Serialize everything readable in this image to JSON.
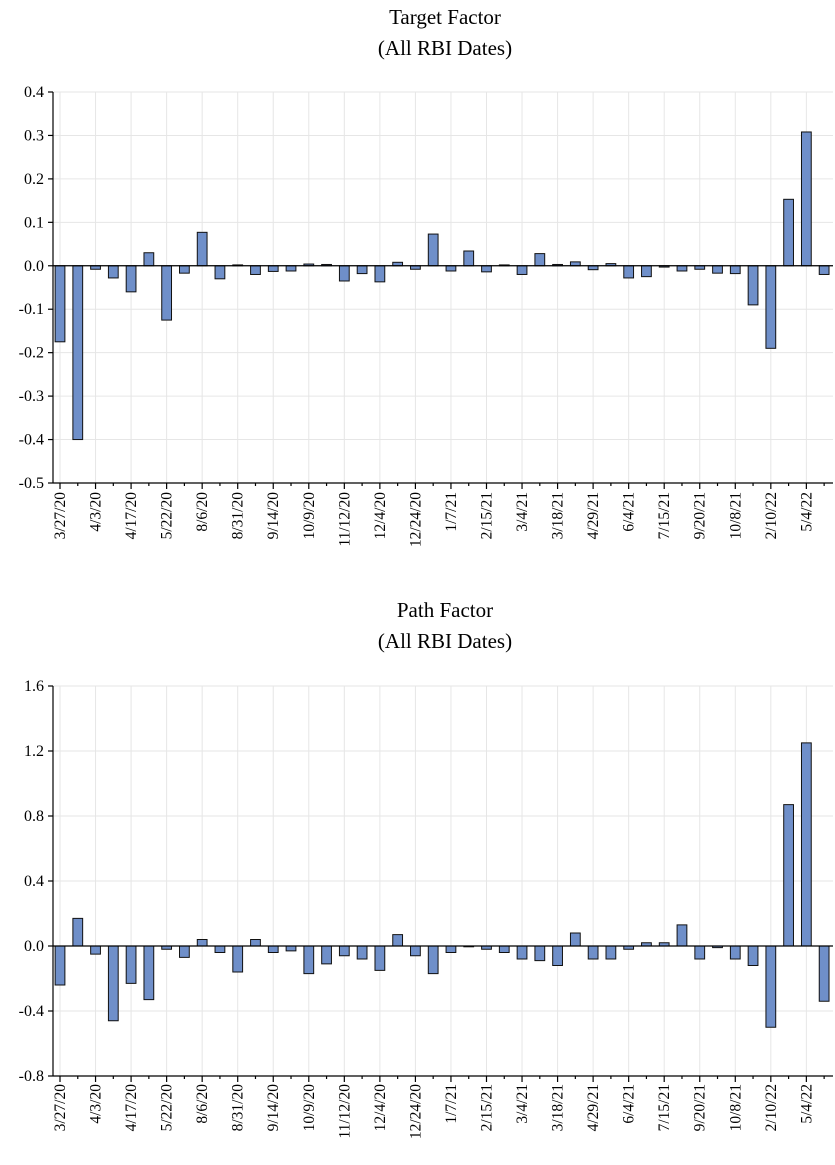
{
  "chart_data": [
    {
      "type": "bar",
      "title": "Target Factor",
      "subtitle": "(All RBI Dates)",
      "xlabel": "",
      "ylabel": "",
      "ylim": [
        -0.5,
        0.4
      ],
      "yticks": [
        "0.4",
        "0.3",
        "0.2",
        "0.1",
        "0.0",
        "-0.1",
        "-0.2",
        "-0.3",
        "-0.4",
        "-0.5"
      ],
      "ytick_values": [
        0.4,
        0.3,
        0.2,
        0.1,
        0.0,
        -0.1,
        -0.2,
        -0.3,
        -0.4,
        -0.5
      ],
      "xtick_labels": [
        "3/27/20",
        "4/3/20",
        "4/17/20",
        "5/22/20",
        "8/6/20",
        "8/31/20",
        "9/14/20",
        "10/9/20",
        "11/12/20",
        "12/4/20",
        "12/24/20",
        "1/7/21",
        "2/15/21",
        "3/4/21",
        "3/18/21",
        "4/29/21",
        "6/4/21",
        "7/15/21",
        "9/20/21",
        "10/8/21",
        "2/10/22",
        "5/4/22"
      ],
      "grid": true,
      "bar_color": "#6f8fc9",
      "values": [
        -0.175,
        -0.4,
        -0.008,
        -0.028,
        -0.06,
        0.03,
        -0.125,
        -0.017,
        0.077,
        -0.03,
        0.002,
        -0.02,
        -0.013,
        -0.012,
        0.004,
        0.003,
        -0.035,
        -0.018,
        -0.037,
        0.008,
        -0.008,
        0.073,
        -0.012,
        0.034,
        -0.014,
        0.002,
        -0.02,
        0.028,
        0.003,
        0.009,
        -0.009,
        0.005,
        -0.028,
        -0.025,
        -0.003,
        -0.012,
        -0.008,
        -0.017,
        -0.018,
        -0.09,
        -0.19,
        0.153,
        0.308,
        -0.02
      ]
    },
    {
      "type": "bar",
      "title": "Path Factor",
      "subtitle": "(All RBI Dates)",
      "xlabel": "",
      "ylabel": "",
      "ylim": [
        -0.8,
        1.6
      ],
      "yticks": [
        "1.6",
        "1.2",
        "0.8",
        "0.4",
        "0.0",
        "-0.4",
        "-0.8"
      ],
      "ytick_values": [
        1.6,
        1.2,
        0.8,
        0.4,
        0.0,
        -0.4,
        -0.8
      ],
      "xtick_labels": [
        "3/27/20",
        "4/3/20",
        "4/17/20",
        "5/22/20",
        "8/6/20",
        "8/31/20",
        "9/14/20",
        "10/9/20",
        "11/12/20",
        "12/4/20",
        "12/24/20",
        "1/7/21",
        "2/15/21",
        "3/4/21",
        "3/18/21",
        "4/29/21",
        "6/4/21",
        "7/15/21",
        "9/20/21",
        "10/8/21",
        "2/10/22",
        "5/4/22"
      ],
      "grid": true,
      "bar_color": "#6f8fc9",
      "values": [
        -0.24,
        0.17,
        -0.05,
        -0.46,
        -0.23,
        -0.33,
        -0.02,
        -0.07,
        0.04,
        -0.04,
        -0.16,
        0.04,
        -0.04,
        -0.03,
        -0.17,
        -0.11,
        -0.06,
        -0.08,
        -0.15,
        0.07,
        -0.06,
        -0.17,
        -0.04,
        0.0,
        -0.02,
        -0.04,
        -0.08,
        -0.09,
        -0.12,
        0.08,
        -0.08,
        -0.08,
        -0.02,
        0.02,
        0.02,
        0.13,
        -0.08,
        -0.01,
        -0.08,
        -0.12,
        -0.5,
        0.87,
        1.25,
        -0.34
      ]
    }
  ]
}
